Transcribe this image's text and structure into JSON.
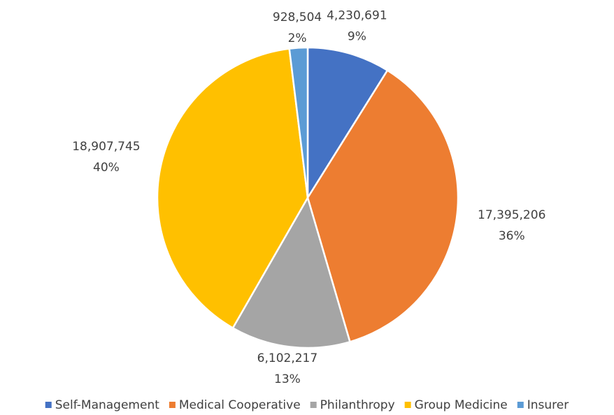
{
  "chart_data": {
    "type": "pie",
    "categories": [
      "Self-Management",
      "Medical Cooperative",
      "Philanthropy",
      "Group Medicine",
      "Insurer"
    ],
    "values": [
      4230691,
      17395206,
      6102217,
      18907745,
      928504
    ],
    "value_labels": [
      "4,230,691",
      "17,395,206",
      "6,102,217",
      "18,907,745",
      "928,504"
    ],
    "percent_labels": [
      "9%",
      "36%",
      "13%",
      "40%",
      "2%"
    ],
    "colors": [
      "#4472c4",
      "#ed7d31",
      "#a5a5a5",
      "#ffc000",
      "#5b9bd5"
    ],
    "legend": "bottom"
  }
}
